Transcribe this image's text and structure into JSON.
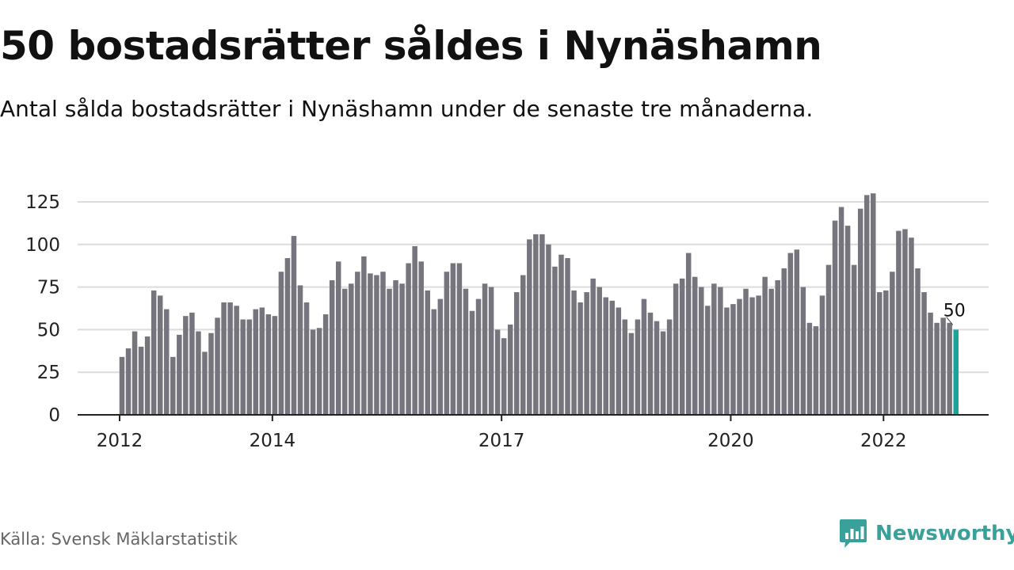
{
  "title": "50 bostadsrätter såldes i Nynäshamn",
  "subtitle": "Antal sålda bostadsrätter i Nynäshamn under de senaste tre månaderna.",
  "source": "Källa: Svensk Mäklarstatistik",
  "brand": {
    "name": "Newsworthy",
    "icon": "newsworthy-logo-icon",
    "color": "#3aa09a"
  },
  "colors": {
    "bar": "#76757d",
    "highlight": "#1aa39a",
    "grid": "#dcdcdc",
    "axis": "#222222"
  },
  "chart_data": {
    "type": "bar",
    "title": "",
    "xlabel": "",
    "ylabel": "",
    "ylim": [
      0,
      130
    ],
    "yticks": [
      0,
      25,
      50,
      75,
      100,
      125
    ],
    "xticks": [
      "2012",
      "2014",
      "2017",
      "2020",
      "2022"
    ],
    "start_month": "2012-01",
    "grid": true,
    "legend": "none",
    "values": [
      34,
      39,
      49,
      40,
      46,
      73,
      70,
      62,
      34,
      47,
      58,
      60,
      49,
      37,
      48,
      57,
      66,
      66,
      64,
      56,
      56,
      62,
      63,
      59,
      58,
      84,
      92,
      105,
      76,
      66,
      50,
      51,
      59,
      79,
      90,
      74,
      77,
      84,
      93,
      83,
      82,
      84,
      74,
      79,
      77,
      89,
      99,
      90,
      73,
      62,
      68,
      84,
      89,
      89,
      74,
      61,
      68,
      77,
      75,
      50,
      45,
      53,
      72,
      82,
      103,
      106,
      106,
      100,
      87,
      94,
      92,
      73,
      66,
      72,
      80,
      75,
      69,
      67,
      63,
      56,
      48,
      56,
      68,
      60,
      55,
      49,
      56,
      77,
      80,
      95,
      81,
      75,
      64,
      77,
      75,
      63,
      65,
      68,
      74,
      69,
      70,
      81,
      74,
      79,
      86,
      95,
      97,
      75,
      54,
      52,
      70,
      88,
      114,
      122,
      111,
      88,
      121,
      129,
      130,
      72,
      73,
      84,
      108,
      109,
      104,
      86,
      72,
      60,
      54,
      57,
      54,
      50
    ],
    "highlight": {
      "value": 50,
      "label": "50"
    }
  }
}
